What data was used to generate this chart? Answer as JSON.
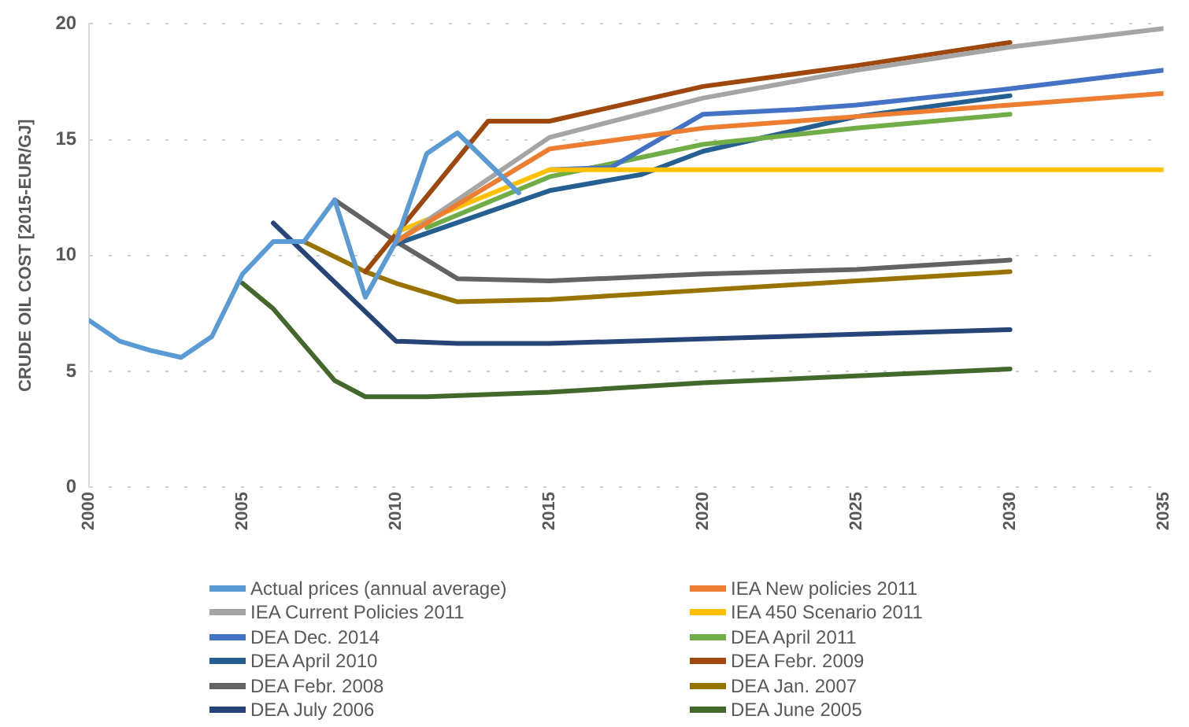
{
  "chart_data": {
    "type": "line",
    "ylabel": "CRUDE OIL COST [2015-EUR/GJ]",
    "xlim": [
      2000,
      2035
    ],
    "xticks": [
      2000,
      2005,
      2010,
      2015,
      2020,
      2025,
      2030,
      2035
    ],
    "ylim": [
      0,
      20
    ],
    "yticks": [
      0,
      5,
      10,
      15,
      20
    ],
    "grid": "y",
    "legend": "bottom",
    "marker": "none",
    "line_style": "solid",
    "series": [
      {
        "name": "Actual prices (annual average)",
        "color": "#5b9bd5",
        "x": [
          2000,
          2001,
          2002,
          2003,
          2004,
          2005,
          2006,
          2007,
          2008,
          2009,
          2010,
          2011,
          2012,
          2013,
          2014
        ],
        "values": [
          7.2,
          6.3,
          5.9,
          5.6,
          6.5,
          9.2,
          10.6,
          10.6,
          12.4,
          8.2,
          10.6,
          14.4,
          15.3,
          14.0,
          12.7
        ]
      },
      {
        "name": "IEA New policies 2011",
        "color": "#ed7d31",
        "x": [
          2010,
          2015,
          2020,
          2025,
          2030,
          2035
        ],
        "values": [
          10.6,
          14.6,
          15.5,
          16.0,
          16.5,
          17.0
        ]
      },
      {
        "name": "IEA Current Policies 2011",
        "color": "#a5a5a5",
        "x": [
          2010,
          2015,
          2020,
          2025,
          2030,
          2035
        ],
        "values": [
          10.6,
          15.1,
          16.8,
          18.0,
          19.0,
          19.8
        ]
      },
      {
        "name": "IEA 450 Scenario 2011",
        "color": "#ffc000",
        "x": [
          2010,
          2015,
          2020,
          2025,
          2030,
          2035
        ],
        "values": [
          11.0,
          13.7,
          13.7,
          13.7,
          13.7,
          13.7
        ]
      },
      {
        "name": "DEA Dec. 2014",
        "color": "#4472c4",
        "x": [
          2015,
          2017,
          2020,
          2023,
          2025,
          2030,
          2035
        ],
        "values": [
          13.7,
          13.8,
          16.1,
          16.3,
          16.5,
          17.2,
          18.0
        ]
      },
      {
        "name": "DEA April 2011",
        "color": "#70ad47",
        "x": [
          2011,
          2015,
          2020,
          2025,
          2030
        ],
        "values": [
          11.2,
          13.4,
          14.8,
          15.5,
          16.1
        ]
      },
      {
        "name": "DEA April 2010",
        "color": "#255e91",
        "x": [
          2010,
          2015,
          2018,
          2020,
          2025,
          2030
        ],
        "values": [
          10.5,
          12.8,
          13.5,
          14.5,
          16.0,
          16.9
        ]
      },
      {
        "name": "DEA Febr. 2009",
        "color": "#9e480e",
        "x": [
          2009,
          2013,
          2015,
          2020,
          2025,
          2030
        ],
        "values": [
          9.3,
          15.8,
          15.8,
          17.3,
          18.2,
          19.2
        ]
      },
      {
        "name": "DEA Febr. 2008",
        "color": "#636363",
        "x": [
          2008,
          2010,
          2012,
          2015,
          2020,
          2025,
          2030
        ],
        "values": [
          12.4,
          10.6,
          9.0,
          8.9,
          9.2,
          9.4,
          9.8
        ]
      },
      {
        "name": "DEA Jan. 2007",
        "color": "#997300",
        "x": [
          2007,
          2009,
          2010,
          2012,
          2015,
          2020,
          2025,
          2030
        ],
        "values": [
          10.6,
          9.3,
          8.8,
          8.0,
          8.1,
          8.5,
          8.9,
          9.3
        ]
      },
      {
        "name": "DEA July 2006",
        "color": "#264478",
        "x": [
          2006,
          2010,
          2012,
          2015,
          2020,
          2025,
          2030
        ],
        "values": [
          11.4,
          6.3,
          6.2,
          6.2,
          6.4,
          6.6,
          6.8
        ]
      },
      {
        "name": "DEA June 2005",
        "color": "#43682b",
        "x": [
          2005,
          2006,
          2008,
          2009,
          2011,
          2015,
          2020,
          2025,
          2030
        ],
        "values": [
          8.8,
          7.7,
          4.6,
          3.9,
          3.9,
          4.1,
          4.5,
          4.8,
          5.1
        ]
      }
    ]
  }
}
